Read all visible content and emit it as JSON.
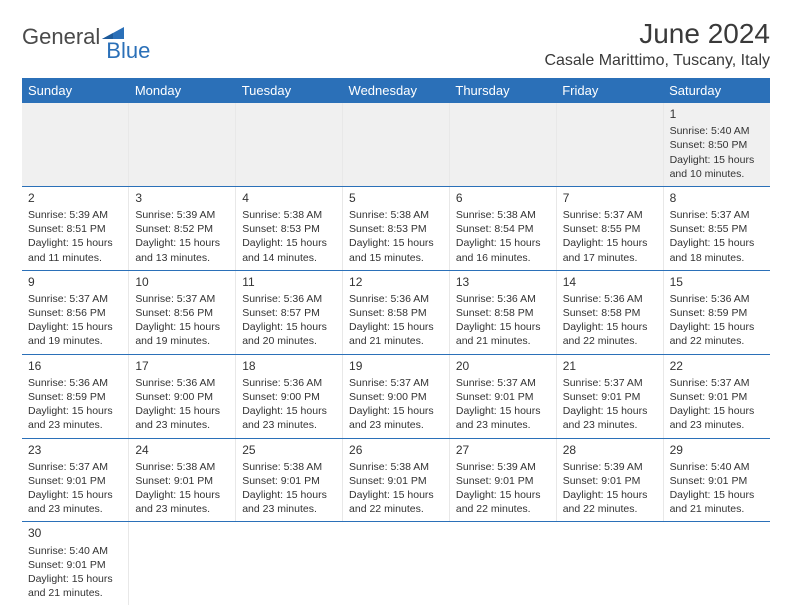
{
  "brand": {
    "part1": "General",
    "part2": "Blue",
    "shape_color": "#2b70b8"
  },
  "title": "June 2024",
  "location": "Casale Marittimo, Tuscany, Italy",
  "colors": {
    "header_bg": "#2b70b8",
    "header_text": "#ffffff",
    "row_divider": "#2b70b8",
    "cell_divider": "#e8e8e8",
    "empty_bg": "#f0f0f0",
    "text": "#333333"
  },
  "weekdays": [
    "Sunday",
    "Monday",
    "Tuesday",
    "Wednesday",
    "Thursday",
    "Friday",
    "Saturday"
  ],
  "weeks": [
    [
      null,
      null,
      null,
      null,
      null,
      null,
      {
        "n": "1",
        "sr": "Sunrise: 5:40 AM",
        "ss": "Sunset: 8:50 PM",
        "dl": "Daylight: 15 hours and 10 minutes."
      }
    ],
    [
      {
        "n": "2",
        "sr": "Sunrise: 5:39 AM",
        "ss": "Sunset: 8:51 PM",
        "dl": "Daylight: 15 hours and 11 minutes."
      },
      {
        "n": "3",
        "sr": "Sunrise: 5:39 AM",
        "ss": "Sunset: 8:52 PM",
        "dl": "Daylight: 15 hours and 13 minutes."
      },
      {
        "n": "4",
        "sr": "Sunrise: 5:38 AM",
        "ss": "Sunset: 8:53 PM",
        "dl": "Daylight: 15 hours and 14 minutes."
      },
      {
        "n": "5",
        "sr": "Sunrise: 5:38 AM",
        "ss": "Sunset: 8:53 PM",
        "dl": "Daylight: 15 hours and 15 minutes."
      },
      {
        "n": "6",
        "sr": "Sunrise: 5:38 AM",
        "ss": "Sunset: 8:54 PM",
        "dl": "Daylight: 15 hours and 16 minutes."
      },
      {
        "n": "7",
        "sr": "Sunrise: 5:37 AM",
        "ss": "Sunset: 8:55 PM",
        "dl": "Daylight: 15 hours and 17 minutes."
      },
      {
        "n": "8",
        "sr": "Sunrise: 5:37 AM",
        "ss": "Sunset: 8:55 PM",
        "dl": "Daylight: 15 hours and 18 minutes."
      }
    ],
    [
      {
        "n": "9",
        "sr": "Sunrise: 5:37 AM",
        "ss": "Sunset: 8:56 PM",
        "dl": "Daylight: 15 hours and 19 minutes."
      },
      {
        "n": "10",
        "sr": "Sunrise: 5:37 AM",
        "ss": "Sunset: 8:56 PM",
        "dl": "Daylight: 15 hours and 19 minutes."
      },
      {
        "n": "11",
        "sr": "Sunrise: 5:36 AM",
        "ss": "Sunset: 8:57 PM",
        "dl": "Daylight: 15 hours and 20 minutes."
      },
      {
        "n": "12",
        "sr": "Sunrise: 5:36 AM",
        "ss": "Sunset: 8:58 PM",
        "dl": "Daylight: 15 hours and 21 minutes."
      },
      {
        "n": "13",
        "sr": "Sunrise: 5:36 AM",
        "ss": "Sunset: 8:58 PM",
        "dl": "Daylight: 15 hours and 21 minutes."
      },
      {
        "n": "14",
        "sr": "Sunrise: 5:36 AM",
        "ss": "Sunset: 8:58 PM",
        "dl": "Daylight: 15 hours and 22 minutes."
      },
      {
        "n": "15",
        "sr": "Sunrise: 5:36 AM",
        "ss": "Sunset: 8:59 PM",
        "dl": "Daylight: 15 hours and 22 minutes."
      }
    ],
    [
      {
        "n": "16",
        "sr": "Sunrise: 5:36 AM",
        "ss": "Sunset: 8:59 PM",
        "dl": "Daylight: 15 hours and 23 minutes."
      },
      {
        "n": "17",
        "sr": "Sunrise: 5:36 AM",
        "ss": "Sunset: 9:00 PM",
        "dl": "Daylight: 15 hours and 23 minutes."
      },
      {
        "n": "18",
        "sr": "Sunrise: 5:36 AM",
        "ss": "Sunset: 9:00 PM",
        "dl": "Daylight: 15 hours and 23 minutes."
      },
      {
        "n": "19",
        "sr": "Sunrise: 5:37 AM",
        "ss": "Sunset: 9:00 PM",
        "dl": "Daylight: 15 hours and 23 minutes."
      },
      {
        "n": "20",
        "sr": "Sunrise: 5:37 AM",
        "ss": "Sunset: 9:01 PM",
        "dl": "Daylight: 15 hours and 23 minutes."
      },
      {
        "n": "21",
        "sr": "Sunrise: 5:37 AM",
        "ss": "Sunset: 9:01 PM",
        "dl": "Daylight: 15 hours and 23 minutes."
      },
      {
        "n": "22",
        "sr": "Sunrise: 5:37 AM",
        "ss": "Sunset: 9:01 PM",
        "dl": "Daylight: 15 hours and 23 minutes."
      }
    ],
    [
      {
        "n": "23",
        "sr": "Sunrise: 5:37 AM",
        "ss": "Sunset: 9:01 PM",
        "dl": "Daylight: 15 hours and 23 minutes."
      },
      {
        "n": "24",
        "sr": "Sunrise: 5:38 AM",
        "ss": "Sunset: 9:01 PM",
        "dl": "Daylight: 15 hours and 23 minutes."
      },
      {
        "n": "25",
        "sr": "Sunrise: 5:38 AM",
        "ss": "Sunset: 9:01 PM",
        "dl": "Daylight: 15 hours and 23 minutes."
      },
      {
        "n": "26",
        "sr": "Sunrise: 5:38 AM",
        "ss": "Sunset: 9:01 PM",
        "dl": "Daylight: 15 hours and 22 minutes."
      },
      {
        "n": "27",
        "sr": "Sunrise: 5:39 AM",
        "ss": "Sunset: 9:01 PM",
        "dl": "Daylight: 15 hours and 22 minutes."
      },
      {
        "n": "28",
        "sr": "Sunrise: 5:39 AM",
        "ss": "Sunset: 9:01 PM",
        "dl": "Daylight: 15 hours and 22 minutes."
      },
      {
        "n": "29",
        "sr": "Sunrise: 5:40 AM",
        "ss": "Sunset: 9:01 PM",
        "dl": "Daylight: 15 hours and 21 minutes."
      }
    ],
    [
      {
        "n": "30",
        "sr": "Sunrise: 5:40 AM",
        "ss": "Sunset: 9:01 PM",
        "dl": "Daylight: 15 hours and 21 minutes."
      },
      null,
      null,
      null,
      null,
      null,
      null
    ]
  ]
}
